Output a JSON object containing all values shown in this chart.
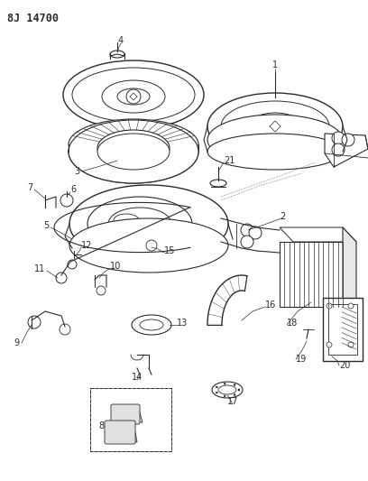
{
  "title": "8J 14700",
  "bg_color": "#ffffff",
  "line_color": "#2a2a2a",
  "fig_width": 4.08,
  "fig_height": 5.33,
  "dpi": 100
}
